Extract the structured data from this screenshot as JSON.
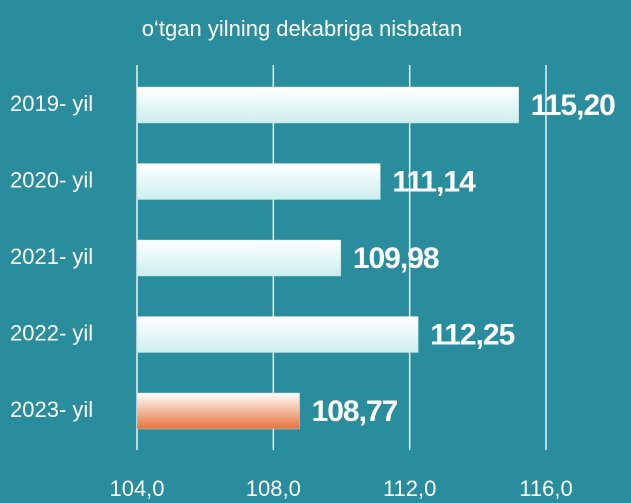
{
  "chart_data": {
    "type": "bar",
    "orientation": "horizontal",
    "title": "o‘tgan yilning dekabriga nisbatan",
    "categories": [
      "2019- yil",
      "2020- yil",
      "2021- yil",
      "2022- yil",
      "2023- yil"
    ],
    "values": [
      115.2,
      111.14,
      109.98,
      112.25,
      108.77
    ],
    "value_labels": [
      "115,20",
      "111,14",
      "109,98",
      "112,25",
      "108,77"
    ],
    "colors": [
      "#cdeeee",
      "#cdeeee",
      "#cdeeee",
      "#cdeeee",
      "#e8723a"
    ],
    "xlim": [
      104,
      116
    ],
    "xticks": [
      {
        "value": 104,
        "label": "104,0"
      },
      {
        "value": 108,
        "label": "108,0"
      },
      {
        "value": 112,
        "label": "112,0"
      },
      {
        "value": 116,
        "label": "116,0"
      }
    ],
    "grid": true
  }
}
